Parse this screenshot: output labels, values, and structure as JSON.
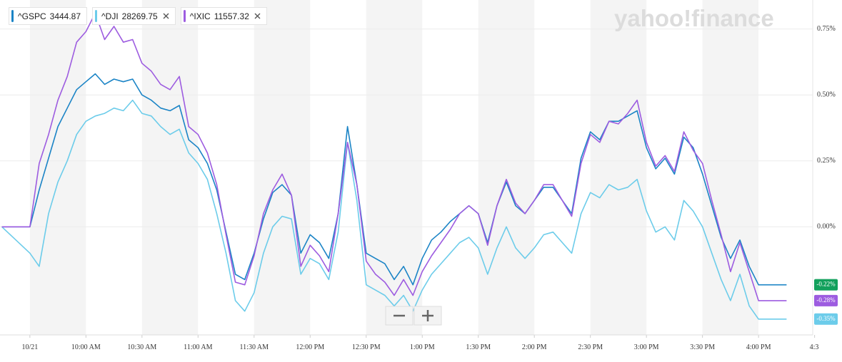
{
  "chart_data": {
    "type": "line",
    "watermark": "yahoo!finance",
    "x": [
      555,
      570,
      575,
      580,
      585,
      590,
      595,
      600,
      605,
      610,
      615,
      620,
      625,
      630,
      635,
      640,
      645,
      650,
      655,
      660,
      665,
      670,
      675,
      680,
      685,
      690,
      695,
      700,
      705,
      710,
      715,
      720,
      725,
      730,
      735,
      740,
      745,
      750,
      755,
      760,
      765,
      770,
      775,
      780,
      785,
      790,
      795,
      800,
      805,
      810,
      815,
      820,
      825,
      830,
      835,
      840,
      845,
      850,
      855,
      860,
      865,
      870,
      875,
      880,
      885,
      890,
      895,
      900,
      905,
      910,
      915,
      920,
      925,
      930,
      935,
      940,
      945,
      950,
      955,
      960,
      975
    ],
    "xlim": [
      554,
      989
    ],
    "xticks": [
      {
        "value": 570,
        "label": "10/21"
      },
      {
        "value": 600,
        "label": "10:00 AM"
      },
      {
        "value": 630,
        "label": "10:30 AM"
      },
      {
        "value": 660,
        "label": "11:00 AM"
      },
      {
        "value": 690,
        "label": "11:30 AM"
      },
      {
        "value": 720,
        "label": "12:00 PM"
      },
      {
        "value": 750,
        "label": "12:30 PM"
      },
      {
        "value": 780,
        "label": "1:00 PM"
      },
      {
        "value": 810,
        "label": "1:30 PM"
      },
      {
        "value": 840,
        "label": "2:00 PM"
      },
      {
        "value": 870,
        "label": "2:30 PM"
      },
      {
        "value": 900,
        "label": "3:00 PM"
      },
      {
        "value": 930,
        "label": "3:30 PM"
      },
      {
        "value": 960,
        "label": "4:00 PM"
      },
      {
        "value": 990,
        "label": "4:3"
      }
    ],
    "ylim": [
      -0.41,
      0.86
    ],
    "yticks": [
      {
        "value": 0.75,
        "label": "0.75%"
      },
      {
        "value": 0.5,
        "label": "0.50%"
      },
      {
        "value": 0.25,
        "label": "0.25%"
      },
      {
        "value": 0,
        "label": "0.00%"
      }
    ],
    "grid": true,
    "series": [
      {
        "name": "^GSPC",
        "price": 3444.87,
        "color": "#1b84c6",
        "label_color": "#12a05c",
        "last_label": "-0.22%",
        "values": [
          0,
          0.0,
          0.14,
          0.26,
          0.38,
          0.45,
          0.52,
          0.55,
          0.58,
          0.54,
          0.56,
          0.55,
          0.56,
          0.5,
          0.48,
          0.45,
          0.44,
          0.46,
          0.33,
          0.3,
          0.24,
          0.14,
          -0.02,
          -0.18,
          -0.2,
          -0.1,
          0.03,
          0.13,
          0.16,
          0.12,
          -0.1,
          -0.03,
          -0.06,
          -0.12,
          0.05,
          0.38,
          0.16,
          -0.1,
          -0.12,
          -0.14,
          -0.2,
          -0.15,
          -0.22,
          -0.12,
          -0.05,
          -0.02,
          0.02,
          0.05,
          0.08,
          0.05,
          -0.06,
          0.08,
          0.17,
          0.08,
          0.05,
          0.1,
          0.15,
          0.15,
          0.1,
          0.05,
          0.26,
          0.36,
          0.33,
          0.4,
          0.4,
          0.42,
          0.44,
          0.3,
          0.22,
          0.26,
          0.2,
          0.34,
          0.3,
          0.2,
          0.08,
          -0.04,
          -0.12,
          -0.05,
          -0.15,
          -0.22,
          -0.22
        ]
      },
      {
        "name": "^DJI",
        "price": 28269.75,
        "color": "#6cccea",
        "label_color": "#6cccea",
        "last_label": "-0.35%",
        "values": [
          0,
          -0.1,
          -0.15,
          0.05,
          0.17,
          0.25,
          0.35,
          0.4,
          0.42,
          0.43,
          0.45,
          0.44,
          0.48,
          0.43,
          0.42,
          0.38,
          0.35,
          0.37,
          0.28,
          0.24,
          0.18,
          0.05,
          -0.1,
          -0.28,
          -0.32,
          -0.25,
          -0.1,
          0.0,
          0.04,
          0.03,
          -0.18,
          -0.12,
          -0.14,
          -0.2,
          -0.02,
          0.32,
          0.1,
          -0.22,
          -0.24,
          -0.26,
          -0.3,
          -0.26,
          -0.32,
          -0.24,
          -0.18,
          -0.14,
          -0.1,
          -0.06,
          -0.04,
          -0.08,
          -0.18,
          -0.08,
          0.0,
          -0.08,
          -0.12,
          -0.08,
          -0.03,
          -0.02,
          -0.06,
          -0.1,
          0.05,
          0.13,
          0.11,
          0.16,
          0.14,
          0.15,
          0.18,
          0.06,
          -0.02,
          0.0,
          -0.05,
          0.1,
          0.06,
          0.0,
          -0.1,
          -0.2,
          -0.28,
          -0.18,
          -0.3,
          -0.35,
          -0.35
        ]
      },
      {
        "name": "^IXIC",
        "price": 11557.32,
        "color": "#9d5ce0",
        "label_color": "#9d5ce0",
        "last_label": "-0.28%",
        "values": [
          0,
          0.0,
          0.24,
          0.35,
          0.48,
          0.57,
          0.7,
          0.74,
          0.81,
          0.71,
          0.76,
          0.7,
          0.71,
          0.62,
          0.59,
          0.54,
          0.52,
          0.57,
          0.38,
          0.35,
          0.28,
          0.16,
          -0.03,
          -0.21,
          -0.22,
          -0.11,
          0.05,
          0.14,
          0.2,
          0.12,
          -0.15,
          -0.07,
          -0.11,
          -0.17,
          0.05,
          0.32,
          0.16,
          -0.13,
          -0.18,
          -0.21,
          -0.26,
          -0.2,
          -0.26,
          -0.17,
          -0.11,
          -0.06,
          -0.01,
          0.05,
          0.08,
          0.05,
          -0.07,
          0.08,
          0.18,
          0.09,
          0.05,
          0.1,
          0.16,
          0.16,
          0.1,
          0.04,
          0.24,
          0.35,
          0.32,
          0.4,
          0.39,
          0.43,
          0.48,
          0.32,
          0.23,
          0.27,
          0.21,
          0.36,
          0.29,
          0.24,
          0.1,
          -0.03,
          -0.17,
          -0.06,
          -0.17,
          -0.28,
          -0.28
        ]
      }
    ]
  }
}
